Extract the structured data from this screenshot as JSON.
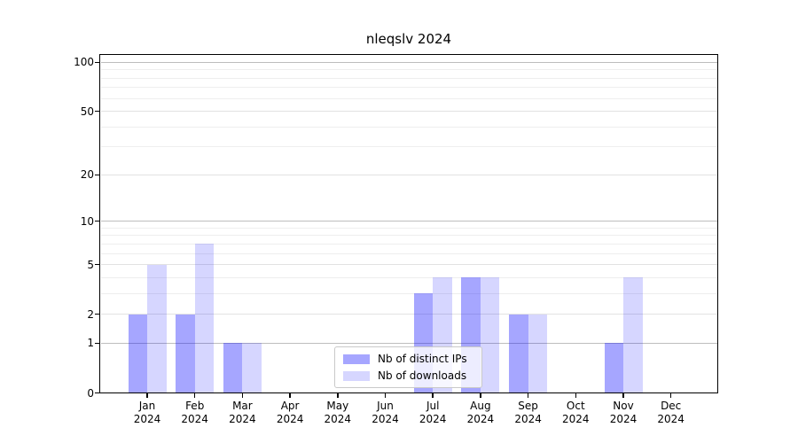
{
  "title": "nleqslv 2024",
  "chart_data": {
    "type": "bar",
    "categories": [
      {
        "month": "Jan",
        "year": "2024"
      },
      {
        "month": "Feb",
        "year": "2024"
      },
      {
        "month": "Mar",
        "year": "2024"
      },
      {
        "month": "Apr",
        "year": "2024"
      },
      {
        "month": "May",
        "year": "2024"
      },
      {
        "month": "Jun",
        "year": "2024"
      },
      {
        "month": "Jul",
        "year": "2024"
      },
      {
        "month": "Aug",
        "year": "2024"
      },
      {
        "month": "Sep",
        "year": "2024"
      },
      {
        "month": "Oct",
        "year": "2024"
      },
      {
        "month": "Nov",
        "year": "2024"
      },
      {
        "month": "Dec",
        "year": "2024"
      }
    ],
    "series": [
      {
        "name": "Nb of distinct IPs",
        "color": "rgba(0,0,255,0.35)",
        "values": [
          2,
          2,
          1,
          0,
          0,
          0,
          3,
          4,
          2,
          0,
          1,
          0
        ]
      },
      {
        "name": "Nb of downloads",
        "color": "rgba(0,0,255,0.16)",
        "values": [
          5,
          7,
          1,
          0,
          0,
          0,
          4,
          4,
          2,
          0,
          4,
          0
        ]
      }
    ],
    "title": "nleqslv 2024",
    "xlabel": "",
    "ylabel": "",
    "y_axis": {
      "scale": "log1p",
      "ylim": [
        0,
        111
      ],
      "major_ticks": [
        0,
        1,
        2,
        5,
        10,
        20,
        50,
        100
      ],
      "tick_labels": [
        "0",
        "1",
        "2",
        "5",
        "10",
        "20",
        "50",
        "100"
      ],
      "minor_ticks": [
        3,
        4,
        6,
        7,
        8,
        9,
        30,
        40,
        60,
        70,
        80,
        90
      ]
    },
    "grid": {
      "enabled": true,
      "decade_line_color": "#bdbdbd",
      "labeled_line_color": "#e2e2e2",
      "minor_line_color": "#eeeeee"
    },
    "legend": {
      "position": "lower center",
      "entries": [
        "Nb of distinct IPs",
        "Nb of downloads"
      ]
    }
  }
}
